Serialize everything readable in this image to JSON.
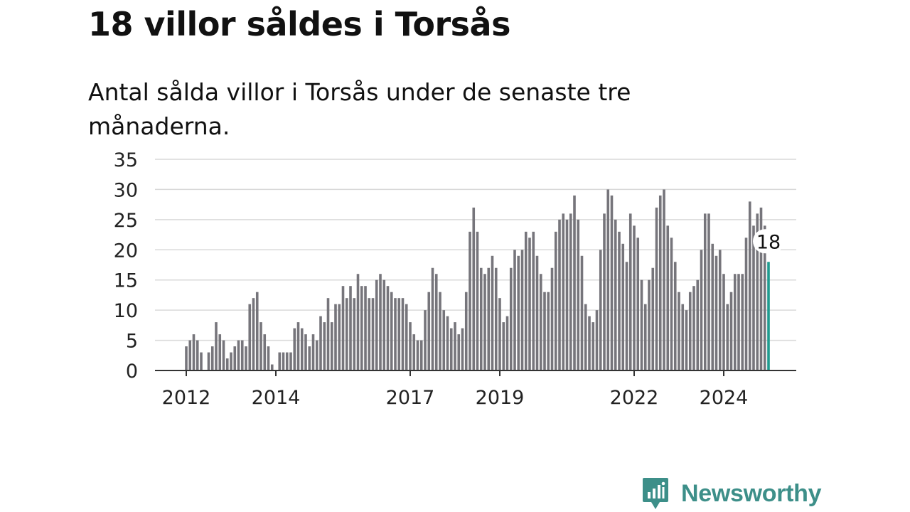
{
  "title": "18 villor såldes i Torsås",
  "subtitle": "Antal sålda villor i Torsås under de senaste tre månaderna.",
  "brand": {
    "name": "Newsworthy",
    "icon": "newsworthy-logo-icon",
    "color": "#3d8f89"
  },
  "chart_data": {
    "type": "bar",
    "y_ticks": [
      0,
      5,
      10,
      15,
      20,
      25,
      30,
      35
    ],
    "ylim": [
      0,
      35
    ],
    "x_tick_labels": [
      "2012",
      "2014",
      "2017",
      "2019",
      "2022",
      "2024"
    ],
    "x_tick_positions": [
      "2012-01",
      "2014-01",
      "2017-01",
      "2019-01",
      "2022-01",
      "2024-01"
    ],
    "start_month": "2012-01",
    "values": [
      4,
      5,
      6,
      5,
      3,
      0,
      3,
      4,
      8,
      6,
      5,
      2,
      3,
      4,
      5,
      5,
      4,
      11,
      12,
      13,
      8,
      6,
      4,
      1,
      0,
      3,
      3,
      3,
      3,
      7,
      8,
      7,
      6,
      4,
      6,
      5,
      9,
      8,
      12,
      8,
      11,
      11,
      14,
      12,
      14,
      12,
      16,
      14,
      14,
      12,
      12,
      15,
      16,
      15,
      14,
      13,
      12,
      12,
      12,
      11,
      8,
      6,
      5,
      5,
      10,
      13,
      17,
      16,
      13,
      10,
      9,
      7,
      8,
      6,
      7,
      13,
      23,
      27,
      23,
      17,
      16,
      17,
      19,
      17,
      12,
      8,
      9,
      17,
      20,
      19,
      20,
      23,
      22,
      23,
      19,
      16,
      13,
      13,
      17,
      23,
      25,
      26,
      25,
      26,
      29,
      25,
      19,
      11,
      9,
      8,
      10,
      20,
      26,
      30,
      29,
      25,
      23,
      21,
      18,
      26,
      24,
      22,
      15,
      11,
      15,
      17,
      27,
      29,
      30,
      24,
      22,
      18,
      13,
      11,
      10,
      13,
      14,
      15,
      20,
      26,
      26,
      21,
      19,
      20,
      16,
      11,
      13,
      16,
      16,
      16,
      22,
      28,
      24,
      26,
      27,
      24,
      18
    ],
    "bar_color": "#76757b",
    "highlight_color": "#1f9b8f",
    "last_value_label": "18",
    "grid": true,
    "legend": "none"
  }
}
